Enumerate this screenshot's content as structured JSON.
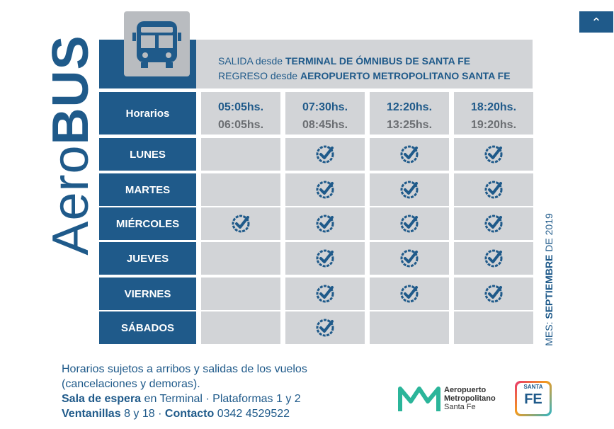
{
  "brand": {
    "light": "Aero",
    "bold": "BUS"
  },
  "route": [
    {
      "label": "SALIDA desde",
      "place": "TERMINAL DE ÓMNIBUS DE SANTA FE"
    },
    {
      "label": "REGRESO desde",
      "place": "AEROPUERTO METROPOLITANO SANTA FE"
    }
  ],
  "table": {
    "corner": "Horarios",
    "columns": [
      {
        "departure": "05:05hs.",
        "return": "06:05hs."
      },
      {
        "departure": "07:30hs.",
        "return": "08:45hs."
      },
      {
        "departure": "12:20hs.",
        "return": "13:25hs."
      },
      {
        "departure": "18:20hs.",
        "return": "19:20hs."
      }
    ],
    "rows": [
      {
        "day": "LUNES",
        "service": [
          false,
          true,
          true,
          true
        ]
      },
      {
        "day": "MARTES",
        "service": [
          false,
          true,
          true,
          true
        ]
      },
      {
        "day": "MIÉRCOLES",
        "service": [
          true,
          true,
          true,
          true
        ]
      },
      {
        "day": "JUEVES",
        "service": [
          false,
          true,
          true,
          true
        ]
      },
      {
        "day": "VIERNES",
        "service": [
          false,
          true,
          true,
          true
        ]
      },
      {
        "day": "SÁBADOS",
        "service": [
          false,
          true,
          false,
          false
        ]
      }
    ]
  },
  "month": {
    "label": "MES:",
    "month": "SEPTIEMBRE",
    "year": "DE 2019"
  },
  "notes": {
    "line1": "Horarios sujetos a arribos y salidas de los vuelos",
    "line2": "(cancelaciones y demoras).",
    "waiting_label": "Sala de espera",
    "waiting_text": "en Terminal · Plataformas 1 y 2",
    "windows_label": "Ventanillas",
    "windows_text": "8 y 18 ·",
    "contact_label": "Contacto",
    "contact_text": "0342 4529522"
  },
  "logos": {
    "airport": [
      "Aeropuerto",
      "Metropolitano",
      "Santa Fe"
    ],
    "province": [
      "SANTA",
      "FE"
    ]
  }
}
